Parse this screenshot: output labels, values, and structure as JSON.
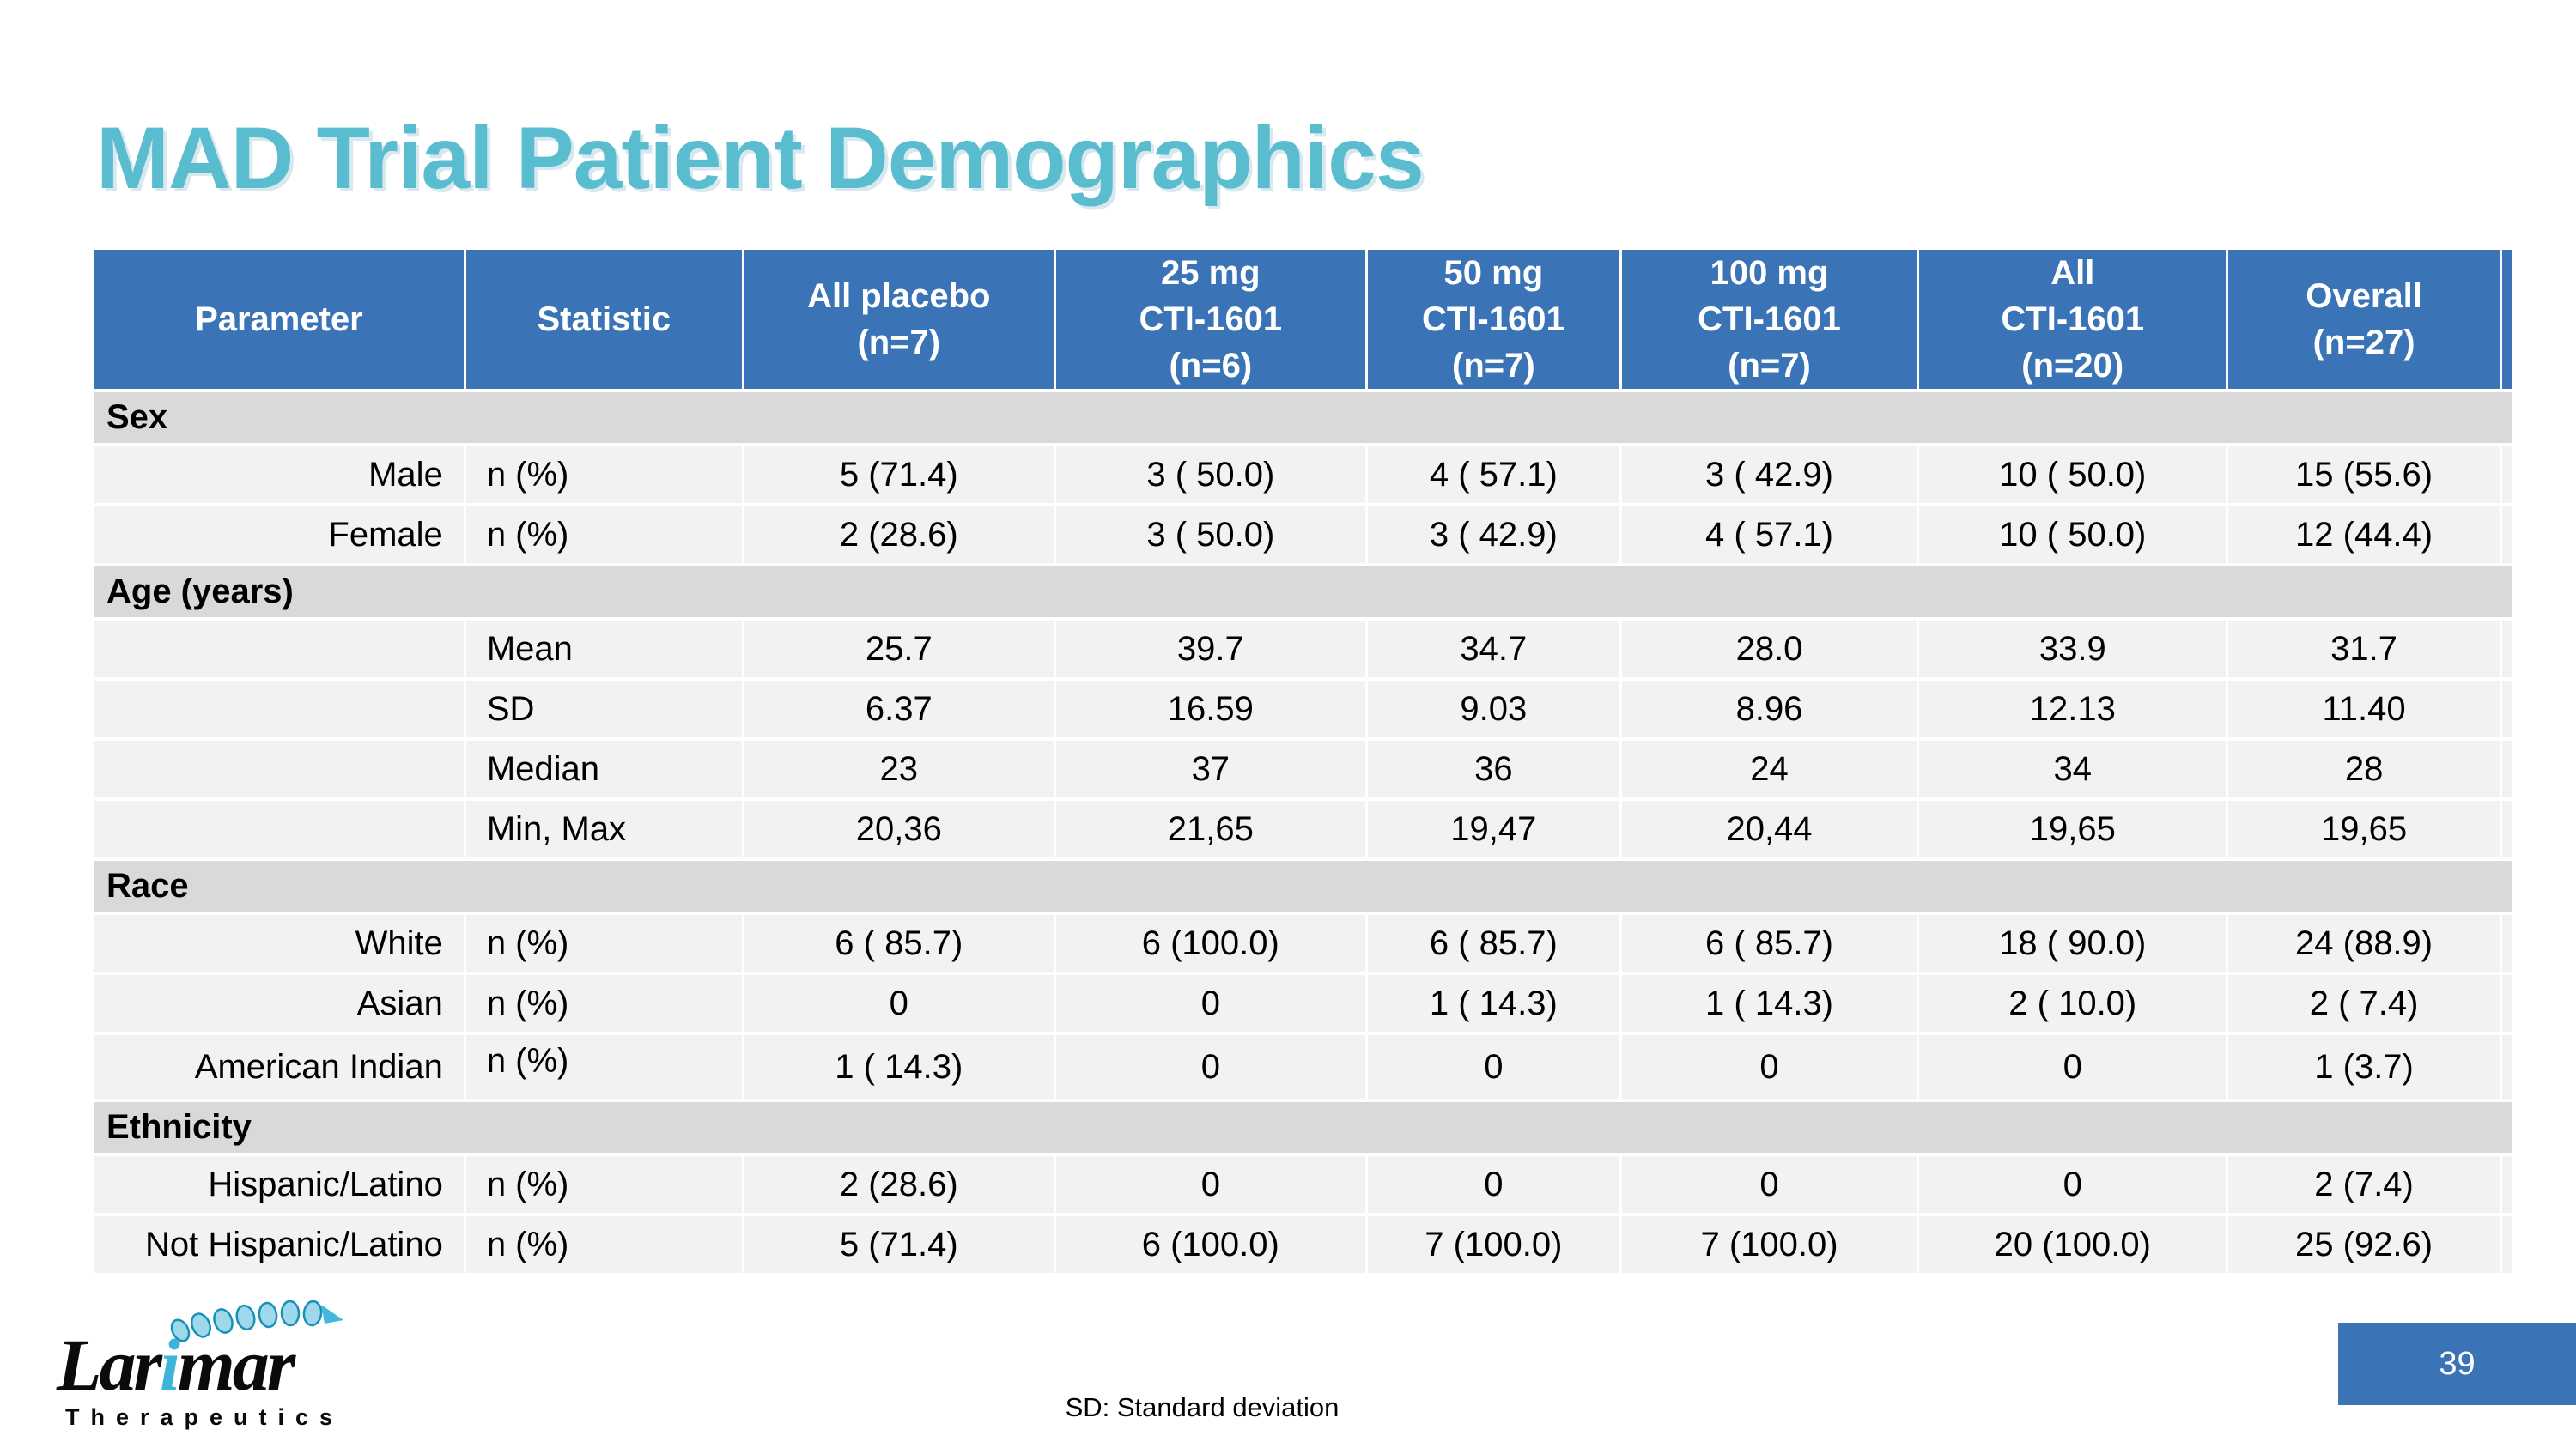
{
  "slide": {
    "title": "MAD Trial Patient Demographics",
    "footnote": "SD: Standard deviation",
    "page_number": "39",
    "logo": {
      "name": "Larimar",
      "subtext": "Therapeutics"
    }
  },
  "colors": {
    "header_blue": "#3a73b6",
    "title_teal": "#5abccf",
    "section_gray": "#d9d9d9",
    "row_gray": "#f2f2f2",
    "logo_teal": "#3fb4d9"
  },
  "table": {
    "columns": [
      "Parameter",
      "Statistic",
      "All placebo\n(n=7)",
      "25 mg\nCTI-1601\n(n=6)",
      "50 mg\nCTI-1601\n(n=7)",
      "100 mg\nCTI-1601\n(n=7)",
      "All\nCTI-1601\n(n=20)",
      "Overall\n(n=27)"
    ],
    "sections": [
      {
        "label": "Sex",
        "rows": [
          {
            "parameter": "Male",
            "statistic": "n (%)",
            "statistic_top": false,
            "values": [
              "5 (71.4)",
              "3 ( 50.0)",
              "4 ( 57.1)",
              "3 ( 42.9)",
              "10 ( 50.0)",
              "15 (55.6)"
            ]
          },
          {
            "parameter": "Female",
            "statistic": "n (%)",
            "statistic_top": false,
            "values": [
              "2 (28.6)",
              "3 ( 50.0)",
              "3 ( 42.9)",
              "4 ( 57.1)",
              "10 ( 50.0)",
              "12 (44.4)"
            ]
          }
        ]
      },
      {
        "label": "Age (years)",
        "rows": [
          {
            "parameter": "",
            "statistic": "Mean",
            "statistic_top": false,
            "values": [
              "25.7",
              "39.7",
              "34.7",
              "28.0",
              "33.9",
              "31.7"
            ]
          },
          {
            "parameter": "",
            "statistic": "SD",
            "statistic_top": false,
            "values": [
              "6.37",
              "16.59",
              "9.03",
              "8.96",
              "12.13",
              "11.40"
            ]
          },
          {
            "parameter": "",
            "statistic": "Median",
            "statistic_top": false,
            "values": [
              "23",
              "37",
              "36",
              "24",
              "34",
              "28"
            ]
          },
          {
            "parameter": "",
            "statistic": "Min, Max",
            "statistic_top": false,
            "values": [
              "20,36",
              "21,65",
              "19,47",
              "20,44",
              "19,65",
              "19,65"
            ]
          }
        ]
      },
      {
        "label": "Race",
        "rows": [
          {
            "parameter": "White",
            "statistic": "n (%)",
            "statistic_top": false,
            "values": [
              "6 ( 85.7)",
              "6 (100.0)",
              "6 ( 85.7)",
              "6 ( 85.7)",
              "18 ( 90.0)",
              "24 (88.9)"
            ]
          },
          {
            "parameter": "Asian",
            "statistic": "n (%)",
            "statistic_top": false,
            "values": [
              "0",
              "0",
              "1 ( 14.3)",
              "1 ( 14.3)",
              "2 ( 10.0)",
              "2 ( 7.4)"
            ]
          },
          {
            "parameter": "American Indian",
            "statistic": "n (%)",
            "statistic_top": true,
            "values": [
              "1 ( 14.3)",
              "0",
              "0",
              "0",
              "0",
              "1 (3.7)"
            ]
          }
        ]
      },
      {
        "label": "Ethnicity",
        "rows": [
          {
            "parameter": "Hispanic/Latino",
            "statistic": "n (%)",
            "statistic_top": false,
            "values": [
              "2 (28.6)",
              "0",
              "0",
              "0",
              "0",
              "2 (7.4)"
            ]
          },
          {
            "parameter": "Not Hispanic/Latino",
            "statistic": "n (%)",
            "statistic_top": false,
            "values": [
              "5 (71.4)",
              "6 (100.0)",
              "7 (100.0)",
              "7 (100.0)",
              "20 (100.0)",
              "25 (92.6)"
            ]
          }
        ]
      }
    ]
  }
}
